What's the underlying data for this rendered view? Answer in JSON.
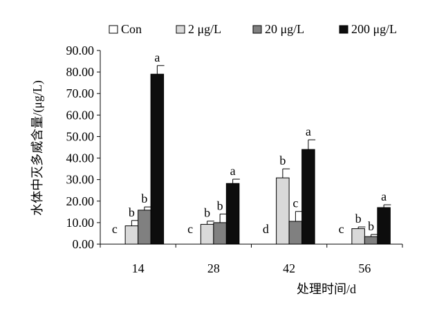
{
  "chart_data": {
    "type": "bar",
    "ylabel": "水体中灭多威含量/(μg/L)",
    "xlabel": "处理时间/d",
    "ylim": [
      0,
      90
    ],
    "yticks": [
      "0.00",
      "10.00",
      "20.00",
      "30.00",
      "40.00",
      "50.00",
      "60.00",
      "70.00",
      "80.00",
      "90.00"
    ],
    "categories": [
      "14",
      "28",
      "42",
      "56"
    ],
    "legend_position": "top",
    "grid": false,
    "series": [
      {
        "name": "Con",
        "color": "#ffffff",
        "values": [
          0,
          0,
          0,
          0
        ],
        "errors": [
          0,
          0,
          0,
          0
        ],
        "labels": [
          "c",
          "c",
          "d",
          "c"
        ]
      },
      {
        "name": "2 μg/L",
        "color": "#d9d9d9",
        "values": [
          8.5,
          9.2,
          30.8,
          7.2
        ],
        "errors": [
          2.5,
          1.5,
          4.2,
          0.8
        ],
        "labels": [
          "b",
          "b",
          "b",
          "b"
        ]
      },
      {
        "name": "20 μg/L",
        "color": "#808080",
        "values": [
          15.8,
          10.0,
          10.6,
          3.5
        ],
        "errors": [
          1.5,
          4.0,
          4.6,
          1.0
        ],
        "labels": [
          "b",
          "b",
          "c",
          "b"
        ]
      },
      {
        "name": "200 μg/L",
        "color": "#0d0d0d",
        "values": [
          79.0,
          28.2,
          44.0,
          17.0
        ],
        "errors": [
          4.0,
          2.0,
          4.5,
          1.3
        ],
        "labels": [
          "a",
          "a",
          "a",
          "a"
        ]
      }
    ]
  }
}
